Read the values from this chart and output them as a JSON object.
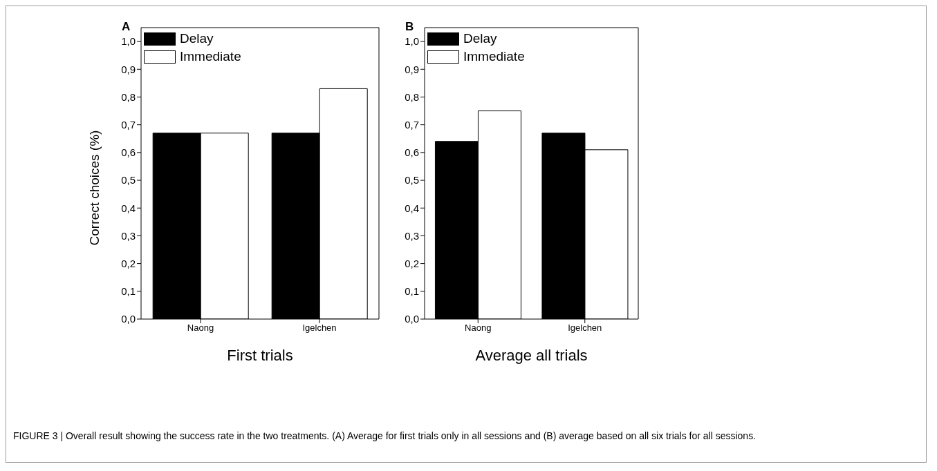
{
  "chart_data": [
    {
      "type": "bar",
      "title": "A",
      "xlabel": "First trials",
      "ylabel": "Correct choices (%)",
      "categories": [
        "Naong",
        "Igelchen"
      ],
      "series": [
        {
          "name": "Delay",
          "color": "#000000",
          "values": [
            0.67,
            0.67
          ]
        },
        {
          "name": "Immediate",
          "color": "#ffffff",
          "values": [
            0.67,
            0.83
          ]
        }
      ],
      "ylim": [
        0,
        1.05
      ],
      "yticks": [
        {
          "value": 0,
          "label": "0,0"
        },
        {
          "value": 0.1,
          "label": "0,1"
        },
        {
          "value": 0.2,
          "label": "0,2"
        },
        {
          "value": 0.3,
          "label": "0,3"
        },
        {
          "value": 0.4,
          "label": "0,4"
        },
        {
          "value": 0.5,
          "label": "0,5"
        },
        {
          "value": 0.6,
          "label": "0,6"
        },
        {
          "value": 0.7,
          "label": "0,7"
        },
        {
          "value": 0.8,
          "label": "0,8"
        },
        {
          "value": 0.9,
          "label": "0,9"
        },
        {
          "value": 1,
          "label": "1,0"
        }
      ],
      "grid": false,
      "legend": "top left",
      "annotations": [
        "FIGURE 3 | Overall result showing the success rate in the two treatments. (A) Average for first trials only in all sessions and (B) average based on all six trials for all sessions."
      ]
    },
    {
      "type": "bar",
      "title": "B",
      "xlabel": "Average all trials",
      "categories": [
        "Naong",
        "Igelchen"
      ],
      "series": [
        {
          "name": "Delay",
          "color": "#000000",
          "values": [
            0.64,
            0.67
          ]
        },
        {
          "name": "Immediate",
          "color": "#ffffff",
          "values": [
            0.75,
            0.61
          ]
        }
      ],
      "ylim": [
        0,
        1.05
      ],
      "yticks": [
        {
          "value": 0,
          "label": "0,0"
        },
        {
          "value": 0.1,
          "label": "0,1"
        },
        {
          "value": 0.2,
          "label": "0,2"
        },
        {
          "value": 0.3,
          "label": "0,3"
        },
        {
          "value": 0.4,
          "label": "0,4"
        },
        {
          "value": 0.5,
          "label": "0,5"
        },
        {
          "value": 0.6,
          "label": "0,6"
        },
        {
          "value": 0.7,
          "label": "0,7"
        },
        {
          "value": 0.8,
          "label": "0,8"
        },
        {
          "value": 0.9,
          "label": "0,9"
        },
        {
          "value": 1,
          "label": "1,0"
        }
      ],
      "grid": false,
      "legend": "top left"
    }
  ]
}
